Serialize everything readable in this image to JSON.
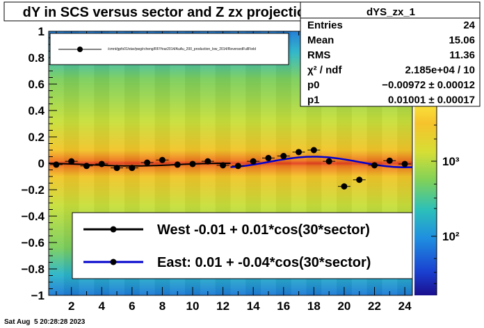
{
  "chart_data": {
    "type": "scatter",
    "title": "dY in SCS versus sector and Z zx projection",
    "xlabel": "",
    "ylabel": "",
    "xlim": [
      0.5,
      24.5
    ],
    "ylim": [
      -1,
      1
    ],
    "x_ticks": [
      2,
      4,
      6,
      8,
      10,
      12,
      14,
      16,
      18,
      20,
      22,
      24
    ],
    "x_tick_labels": [
      "2",
      "4",
      "6",
      "8",
      "10",
      "12",
      "14",
      "16",
      "18",
      "20",
      "22",
      "24"
    ],
    "y_ticks": [
      -1,
      -0.8,
      -0.6,
      -0.4,
      -0.2,
      0,
      0.2,
      0.4,
      0.6,
      0.8,
      1
    ],
    "y_tick_labels": [
      "−1",
      "−0.8",
      "−0.6",
      "−0.4",
      "−0.2",
      "0",
      "0.2",
      "0.4",
      "0.6",
      "0.8",
      "1"
    ],
    "colorbar": {
      "scale": "log",
      "tick_labels": [
        "10²",
        "10³"
      ]
    },
    "series": [
      {
        "name": "West -0.01 +  0.01*cos(30*sector)",
        "color": "#000000",
        "x": [
          1,
          2,
          3,
          4,
          5,
          6,
          7,
          8,
          9,
          10,
          11,
          12
        ],
        "y": [
          -0.01,
          0.015,
          -0.02,
          -0.005,
          -0.035,
          -0.035,
          0.005,
          0.025,
          -0.01,
          -0.005,
          0.015,
          -0.015
        ],
        "fit": {
          "p0": -0.01,
          "p1": 0.01,
          "x_range": [
            0.5,
            12.5
          ]
        }
      },
      {
        "name": "East:  0.01 + -0.04*cos(30*sector)",
        "color": "#0000cc",
        "x": [
          13,
          14,
          15,
          16,
          17,
          18,
          19,
          20,
          21,
          22,
          23,
          24
        ],
        "y": [
          -0.02,
          0.015,
          0.04,
          0.055,
          0.085,
          0.1,
          0.015,
          -0.175,
          -0.125,
          -0.015,
          0.02,
          -0.005
        ],
        "fit": {
          "p0": 0.01,
          "p1": -0.04,
          "x_range": [
            12.5,
            24.5
          ]
        }
      }
    ],
    "legend_top": {
      "entry": "/cmnt/gpfs01/star/pwg/rcheng/RF/Year2014/AuAu_200_production_low_2014/ReversedFullField"
    }
  },
  "stats_box": {
    "title": "dYS_zx_1",
    "rows": [
      {
        "label": "Entries",
        "value": "24"
      },
      {
        "label": "Mean",
        "value": "15.06"
      },
      {
        "label": "RMS",
        "value": "11.36"
      },
      {
        "label": "χ² / ndf",
        "value": "2.185e+04 / 10"
      },
      {
        "label": "p0",
        "value": "−0.00972 ± 0.00012"
      },
      {
        "label": "p1",
        "value": "0.01001 ± 0.00017"
      }
    ]
  },
  "timestamp": "Sat Aug  5 20:28:28 2023"
}
